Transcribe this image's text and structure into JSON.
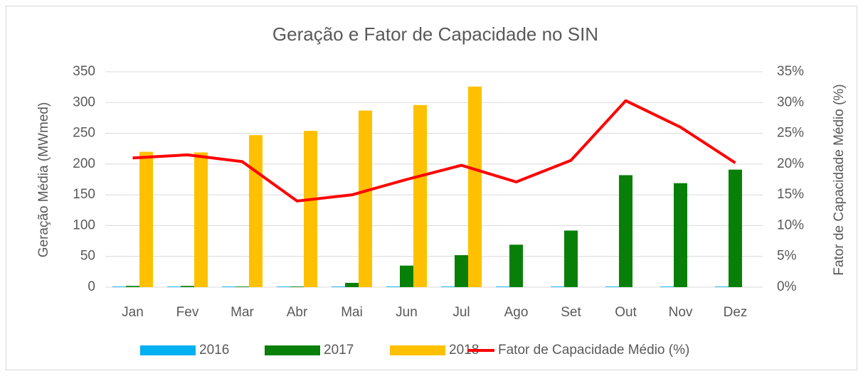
{
  "chart_data": {
    "type": "bar",
    "title": "Geração e Fator de Capacidade no SIN",
    "y_label": "Geração Média (MWmed)",
    "y2_label": "Fator de Capacidade Médio (%)",
    "categories": [
      "Jan",
      "Fev",
      "Mar",
      "Abr",
      "Mai",
      "Jun",
      "Jul",
      "Ago",
      "Set",
      "Out",
      "Nov",
      "Dez"
    ],
    "series": [
      {
        "name": "2016",
        "type": "bar",
        "color": "#00b0f0",
        "values": [
          1,
          1,
          1,
          1,
          1,
          1,
          1,
          1,
          1,
          1,
          1,
          1
        ]
      },
      {
        "name": "2017",
        "type": "bar",
        "color": "#088008",
        "values": [
          2,
          2,
          1,
          1,
          7,
          35,
          52,
          69,
          92,
          182,
          169,
          191
        ]
      },
      {
        "name": "2018",
        "type": "bar",
        "color": "#ffc000",
        "values": [
          220,
          219,
          247,
          254,
          287,
          296,
          326,
          null,
          null,
          null,
          null,
          null
        ]
      },
      {
        "name": "Fator de Capacidade Médio (%)",
        "type": "line",
        "axis": "y2",
        "color": "#ff0000",
        "values": [
          21,
          21.5,
          20.4,
          14,
          15,
          17.5,
          19.8,
          17.1,
          20.6,
          30.3,
          26,
          20.2
        ]
      }
    ],
    "ylim": [
      0,
      350
    ],
    "yticks": [
      0,
      50,
      100,
      150,
      200,
      250,
      300,
      350
    ],
    "y2lim": [
      0,
      35
    ],
    "y2ticks": [
      {
        "value": 0,
        "label": "0%"
      },
      {
        "value": 5,
        "label": "5%"
      },
      {
        "value": 10,
        "label": "10%"
      },
      {
        "value": 15,
        "label": "15%"
      },
      {
        "value": 20,
        "label": "20%"
      },
      {
        "value": 25,
        "label": "25%"
      },
      {
        "value": 30,
        "label": "30%"
      },
      {
        "value": 35,
        "label": "35%"
      }
    ],
    "grid": true,
    "legend": "bottom"
  }
}
